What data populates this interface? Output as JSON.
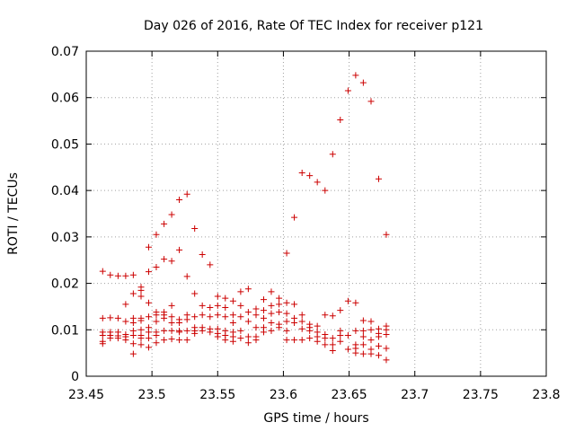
{
  "chart_data": {
    "type": "scatter",
    "title": "Day 026 of 2016, Rate Of TEC Index for receiver p121",
    "xlabel": "GPS time / hours",
    "ylabel": "ROTI / TECUs",
    "xlim": [
      23.45,
      23.8
    ],
    "ylim": [
      0,
      0.07
    ],
    "xticks": [
      23.45,
      23.5,
      23.55,
      23.6,
      23.65,
      23.7,
      23.75,
      23.8
    ],
    "xtick_labels": [
      "23.45",
      "23.5",
      "23.55",
      "23.6",
      "23.65",
      "23.7",
      "23.75",
      "23.8"
    ],
    "yticks": [
      0,
      0.01,
      0.02,
      0.03,
      0.04,
      0.05,
      0.06,
      0.07
    ],
    "ytick_labels": [
      "0",
      "0.01",
      "0.02",
      "0.03",
      "0.04",
      "0.05",
      "0.06",
      "0.07"
    ],
    "grid": true,
    "marker": "plus",
    "color": "#cc0000",
    "points": [
      [
        23.4625,
        0.0226
      ],
      [
        23.4625,
        0.0125
      ],
      [
        23.4625,
        0.0095
      ],
      [
        23.4625,
        0.0088
      ],
      [
        23.4625,
        0.0075
      ],
      [
        23.4625,
        0.007
      ],
      [
        23.4683,
        0.0218
      ],
      [
        23.4683,
        0.0126
      ],
      [
        23.4683,
        0.0095
      ],
      [
        23.4683,
        0.0088
      ],
      [
        23.4683,
        0.0082
      ],
      [
        23.4742,
        0.0216
      ],
      [
        23.4742,
        0.0125
      ],
      [
        23.4742,
        0.0095
      ],
      [
        23.4742,
        0.0087
      ],
      [
        23.4742,
        0.0082
      ],
      [
        23.48,
        0.0216
      ],
      [
        23.48,
        0.0155
      ],
      [
        23.48,
        0.0118
      ],
      [
        23.48,
        0.009
      ],
      [
        23.48,
        0.0085
      ],
      [
        23.48,
        0.0078
      ],
      [
        23.4858,
        0.0218
      ],
      [
        23.4858,
        0.0178
      ],
      [
        23.4858,
        0.0125
      ],
      [
        23.4858,
        0.0115
      ],
      [
        23.4858,
        0.0098
      ],
      [
        23.4858,
        0.0088
      ],
      [
        23.4858,
        0.007
      ],
      [
        23.4858,
        0.0048
      ],
      [
        23.4917,
        0.0192
      ],
      [
        23.4917,
        0.0185
      ],
      [
        23.4917,
        0.0172
      ],
      [
        23.4917,
        0.0125
      ],
      [
        23.4917,
        0.012
      ],
      [
        23.4917,
        0.01
      ],
      [
        23.4917,
        0.0088
      ],
      [
        23.4917,
        0.0082
      ],
      [
        23.4917,
        0.0068
      ],
      [
        23.4975,
        0.0278
      ],
      [
        23.4975,
        0.0225
      ],
      [
        23.4975,
        0.0158
      ],
      [
        23.4975,
        0.0128
      ],
      [
        23.4975,
        0.0105
      ],
      [
        23.4975,
        0.0095
      ],
      [
        23.4975,
        0.0082
      ],
      [
        23.4975,
        0.0062
      ],
      [
        23.5033,
        0.0305
      ],
      [
        23.5033,
        0.0235
      ],
      [
        23.5033,
        0.0138
      ],
      [
        23.5033,
        0.0132
      ],
      [
        23.5033,
        0.0118
      ],
      [
        23.5033,
        0.0095
      ],
      [
        23.5033,
        0.0088
      ],
      [
        23.5033,
        0.0072
      ],
      [
        23.5092,
        0.0328
      ],
      [
        23.5092,
        0.0252
      ],
      [
        23.5092,
        0.0138
      ],
      [
        23.5092,
        0.0132
      ],
      [
        23.5092,
        0.0125
      ],
      [
        23.5092,
        0.0098
      ],
      [
        23.5092,
        0.0078
      ],
      [
        23.515,
        0.0348
      ],
      [
        23.515,
        0.0248
      ],
      [
        23.515,
        0.0152
      ],
      [
        23.515,
        0.0128
      ],
      [
        23.515,
        0.0115
      ],
      [
        23.515,
        0.0098
      ],
      [
        23.515,
        0.008
      ],
      [
        23.5208,
        0.038
      ],
      [
        23.5208,
        0.0272
      ],
      [
        23.5208,
        0.0122
      ],
      [
        23.5208,
        0.0115
      ],
      [
        23.5208,
        0.0098
      ],
      [
        23.5208,
        0.0095
      ],
      [
        23.5208,
        0.0078
      ],
      [
        23.5267,
        0.0392
      ],
      [
        23.5267,
        0.0215
      ],
      [
        23.5267,
        0.0132
      ],
      [
        23.5267,
        0.0122
      ],
      [
        23.5267,
        0.0098
      ],
      [
        23.5267,
        0.0078
      ],
      [
        23.5325,
        0.0318
      ],
      [
        23.5325,
        0.0178
      ],
      [
        23.5325,
        0.0128
      ],
      [
        23.5325,
        0.0105
      ],
      [
        23.5325,
        0.0098
      ],
      [
        23.5325,
        0.0092
      ],
      [
        23.5383,
        0.0262
      ],
      [
        23.5383,
        0.0152
      ],
      [
        23.5383,
        0.0132
      ],
      [
        23.5383,
        0.0105
      ],
      [
        23.5383,
        0.0098
      ],
      [
        23.5442,
        0.024
      ],
      [
        23.5442,
        0.0148
      ],
      [
        23.5442,
        0.0128
      ],
      [
        23.5442,
        0.0102
      ],
      [
        23.5442,
        0.0095
      ],
      [
        23.55,
        0.0172
      ],
      [
        23.55,
        0.0152
      ],
      [
        23.55,
        0.0132
      ],
      [
        23.55,
        0.0102
      ],
      [
        23.55,
        0.0092
      ],
      [
        23.55,
        0.0085
      ],
      [
        23.5558,
        0.0168
      ],
      [
        23.5558,
        0.0148
      ],
      [
        23.5558,
        0.0128
      ],
      [
        23.5558,
        0.0098
      ],
      [
        23.5558,
        0.0088
      ],
      [
        23.5558,
        0.0078
      ],
      [
        23.5617,
        0.0162
      ],
      [
        23.5617,
        0.0132
      ],
      [
        23.5617,
        0.0115
      ],
      [
        23.5617,
        0.0095
      ],
      [
        23.5617,
        0.0085
      ],
      [
        23.5617,
        0.0075
      ],
      [
        23.5675,
        0.0182
      ],
      [
        23.5675,
        0.0152
      ],
      [
        23.5675,
        0.0128
      ],
      [
        23.5675,
        0.0098
      ],
      [
        23.5675,
        0.0082
      ],
      [
        23.5733,
        0.0188
      ],
      [
        23.5733,
        0.0138
      ],
      [
        23.5733,
        0.0118
      ],
      [
        23.5733,
        0.0085
      ],
      [
        23.5733,
        0.0072
      ],
      [
        23.5792,
        0.0145
      ],
      [
        23.5792,
        0.0132
      ],
      [
        23.5792,
        0.0105
      ],
      [
        23.5792,
        0.0085
      ],
      [
        23.5792,
        0.0078
      ],
      [
        23.585,
        0.0165
      ],
      [
        23.585,
        0.0142
      ],
      [
        23.585,
        0.0125
      ],
      [
        23.585,
        0.0105
      ],
      [
        23.585,
        0.0095
      ],
      [
        23.5908,
        0.0182
      ],
      [
        23.5908,
        0.0152
      ],
      [
        23.5908,
        0.0135
      ],
      [
        23.5908,
        0.0115
      ],
      [
        23.5908,
        0.0098
      ],
      [
        23.5967,
        0.0168
      ],
      [
        23.5967,
        0.0155
      ],
      [
        23.5967,
        0.0138
      ],
      [
        23.5967,
        0.0112
      ],
      [
        23.5967,
        0.0105
      ],
      [
        23.6025,
        0.0265
      ],
      [
        23.6025,
        0.0158
      ],
      [
        23.6025,
        0.0135
      ],
      [
        23.6025,
        0.0118
      ],
      [
        23.6025,
        0.0098
      ],
      [
        23.6025,
        0.0078
      ],
      [
        23.6083,
        0.0342
      ],
      [
        23.6083,
        0.0155
      ],
      [
        23.6083,
        0.0125
      ],
      [
        23.6083,
        0.0115
      ],
      [
        23.6083,
        0.0078
      ],
      [
        23.6142,
        0.0438
      ],
      [
        23.6142,
        0.0132
      ],
      [
        23.6142,
        0.0118
      ],
      [
        23.6142,
        0.0102
      ],
      [
        23.6142,
        0.0078
      ],
      [
        23.62,
        0.0432
      ],
      [
        23.62,
        0.0112
      ],
      [
        23.62,
        0.0105
      ],
      [
        23.62,
        0.0098
      ],
      [
        23.62,
        0.0082
      ],
      [
        23.6258,
        0.0418
      ],
      [
        23.6258,
        0.0108
      ],
      [
        23.6258,
        0.0095
      ],
      [
        23.6258,
        0.0085
      ],
      [
        23.6258,
        0.0075
      ],
      [
        23.6317,
        0.04
      ],
      [
        23.6317,
        0.0132
      ],
      [
        23.6317,
        0.009
      ],
      [
        23.6317,
        0.0082
      ],
      [
        23.6317,
        0.0068
      ],
      [
        23.6375,
        0.0478
      ],
      [
        23.6375,
        0.013
      ],
      [
        23.6375,
        0.0082
      ],
      [
        23.6375,
        0.0068
      ],
      [
        23.6375,
        0.0055
      ],
      [
        23.6433,
        0.0552
      ],
      [
        23.6433,
        0.0142
      ],
      [
        23.6433,
        0.0098
      ],
      [
        23.6433,
        0.0088
      ],
      [
        23.6433,
        0.0075
      ],
      [
        23.6492,
        0.0615
      ],
      [
        23.6492,
        0.0162
      ],
      [
        23.6492,
        0.0088
      ],
      [
        23.6492,
        0.0058
      ],
      [
        23.655,
        0.0648
      ],
      [
        23.655,
        0.0158
      ],
      [
        23.655,
        0.0098
      ],
      [
        23.655,
        0.0068
      ],
      [
        23.655,
        0.006
      ],
      [
        23.655,
        0.005
      ],
      [
        23.6608,
        0.0632
      ],
      [
        23.6608,
        0.012
      ],
      [
        23.6608,
        0.0098
      ],
      [
        23.6608,
        0.0085
      ],
      [
        23.6608,
        0.0068
      ],
      [
        23.6608,
        0.0048
      ],
      [
        23.6667,
        0.0592
      ],
      [
        23.6667,
        0.0118
      ],
      [
        23.6667,
        0.01
      ],
      [
        23.6667,
        0.0078
      ],
      [
        23.6667,
        0.0058
      ],
      [
        23.6667,
        0.0048
      ],
      [
        23.6725,
        0.0425
      ],
      [
        23.6725,
        0.0102
      ],
      [
        23.6725,
        0.0092
      ],
      [
        23.6725,
        0.0085
      ],
      [
        23.6725,
        0.0065
      ],
      [
        23.6725,
        0.0045
      ],
      [
        23.6783,
        0.0305
      ],
      [
        23.6783,
        0.0108
      ],
      [
        23.6783,
        0.01
      ],
      [
        23.6783,
        0.009
      ],
      [
        23.6783,
        0.006
      ],
      [
        23.6783,
        0.0035
      ]
    ]
  }
}
